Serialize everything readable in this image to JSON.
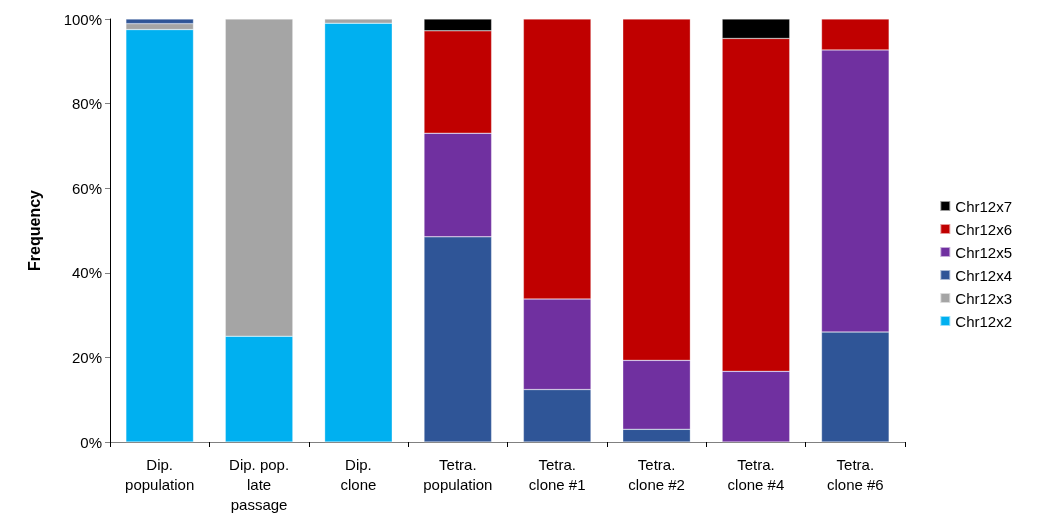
{
  "chart_data": {
    "type": "bar",
    "stacked": true,
    "ylabel": "Frequency",
    "legend": "right",
    "grid": false,
    "categories": [
      "Dip.\npopulation",
      "Dip. pop.\nlate\npassage",
      "Dip.\nclone",
      "Tetra.\npopulation",
      "Tetra.\nclone #1",
      "Tetra.\nclone #2",
      "Tetra.\nclone #4",
      "Tetra.\nclone #6"
    ],
    "ylim": [
      0,
      100
    ],
    "yticks": [
      {
        "value": 0,
        "label": "0%"
      },
      {
        "value": 20,
        "label": "20%"
      },
      {
        "value": 40,
        "label": "40%"
      },
      {
        "value": 60,
        "label": "60%"
      },
      {
        "value": 80,
        "label": "80%"
      },
      {
        "value": 100,
        "label": "100%"
      }
    ],
    "series": [
      {
        "name": "Chr12x2",
        "color": "#00b0f0",
        "values": [
          97.5,
          25,
          99,
          null,
          null,
          null,
          null,
          null
        ]
      },
      {
        "name": "Chr12x3",
        "color": "#a5a5a5",
        "values": [
          1.4,
          75,
          1,
          null,
          null,
          null,
          null,
          null
        ]
      },
      {
        "name": "Chr12x4",
        "color": "#2f5597",
        "values": [
          1.1,
          null,
          null,
          48.5,
          12.4,
          3,
          null,
          26
        ]
      },
      {
        "name": "Chr12x5",
        "color": "#7030a0",
        "values": [
          null,
          null,
          null,
          24.5,
          21.4,
          16.3,
          16.7,
          66.7
        ]
      },
      {
        "name": "Chr12x6",
        "color": "#c00000",
        "values": [
          null,
          null,
          null,
          24.2,
          66.2,
          80.7,
          78.7,
          7.3
        ]
      },
      {
        "name": "Chr12x7",
        "color": "#000000",
        "values": [
          null,
          null,
          null,
          2.8,
          null,
          null,
          4.6,
          null
        ]
      }
    ]
  }
}
